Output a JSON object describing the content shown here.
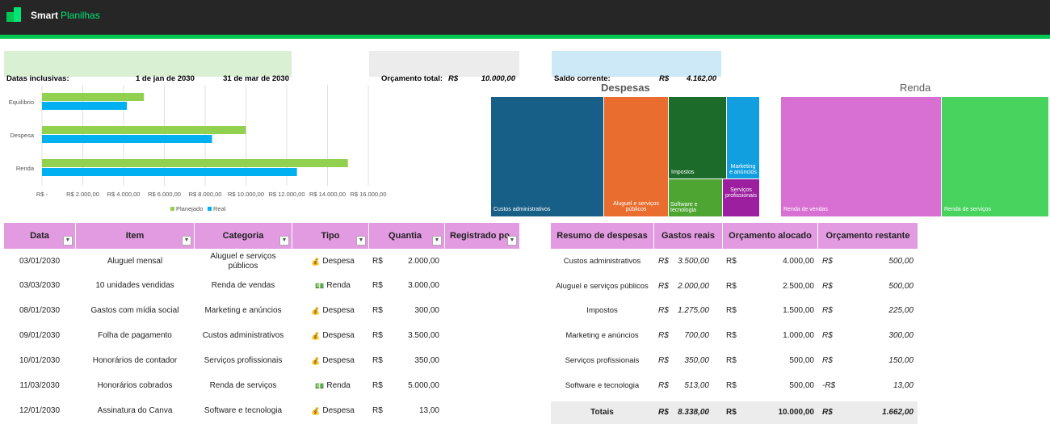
{
  "app": {
    "brand": "Smart",
    "brand_accent": "Planilhas"
  },
  "dates": {
    "label": "Datas inclusivas:",
    "start": "1 de jan de 2030",
    "end": "31 de mar de 2030"
  },
  "budget": {
    "label": "Orçamento total:",
    "currency": "R$",
    "value": "10.000,00"
  },
  "balance": {
    "label": "Saldo corrente:",
    "currency": "R$",
    "value": "4.162,00"
  },
  "chart_data": {
    "type": "bar",
    "orientation": "horizontal",
    "categories": [
      "Equilíbrio",
      "Despesa",
      "Renda"
    ],
    "series": [
      {
        "name": "Planejado",
        "values": [
          5000,
          10000,
          15000
        ],
        "color": "#92d050"
      },
      {
        "name": "Real",
        "values": [
          4162,
          8338,
          12500
        ],
        "color": "#00b0f0"
      }
    ],
    "xlim": [
      0,
      16000
    ],
    "ticks": [
      "R$ -",
      "R$ 2.000,00",
      "R$ 4.000,00",
      "R$ 6.000,00",
      "R$ 8.000,00",
      "R$ 10.000,00",
      "R$ 12.000,00",
      "R$ 14.000,00",
      "R$ 16.000,00"
    ],
    "grid": true,
    "legend": "bottom"
  },
  "treemap_expenses": {
    "title": "Despesas",
    "cells": [
      {
        "label": "Custos administrativos",
        "color": "#175f86"
      },
      {
        "label": "Aluguel e serviços públicos",
        "color": "#e96d2e"
      },
      {
        "label": "Impostos",
        "color": "#1d6b2b"
      },
      {
        "label": "Marketing e anúncios",
        "color": "#129fe0"
      },
      {
        "label": "Software e tecnologia",
        "color": "#4ea531"
      },
      {
        "label": "Serviços profissionais",
        "color": "#9b1f9e"
      }
    ]
  },
  "treemap_income": {
    "title": "Renda",
    "cells": [
      {
        "label": "Renda de vendas",
        "color": "#d86fd2"
      },
      {
        "label": "Renda de serviços",
        "color": "#48d35e"
      }
    ]
  },
  "transactions": {
    "headers": [
      "Data",
      "Item",
      "Categoria",
      "Tipo",
      "Quantia",
      "Registrado po"
    ],
    "rows": [
      {
        "date": "03/01/2030",
        "item": "Aluguel mensal",
        "category": "Aluguel e serviços públicos",
        "type_icon": "💰",
        "type": "Despesa",
        "cur": "R$",
        "amount": "2.000,00"
      },
      {
        "date": "03/03/2030",
        "item": "10 unidades vendidas",
        "category": "Renda de vendas",
        "type_icon": "💵",
        "type": "Renda",
        "cur": "R$",
        "amount": "3.000,00"
      },
      {
        "date": "08/01/2030",
        "item": "Gastos com mídia social",
        "category": "Marketing e anúncios",
        "type_icon": "💰",
        "type": "Despesa",
        "cur": "R$",
        "amount": "300,00"
      },
      {
        "date": "09/01/2030",
        "item": "Folha de pagamento",
        "category": "Custos administrativos",
        "type_icon": "💰",
        "type": "Despesa",
        "cur": "R$",
        "amount": "3.500,00"
      },
      {
        "date": "10/01/2030",
        "item": "Honorários de contador",
        "category": "Serviços profissionais",
        "type_icon": "💰",
        "type": "Despesa",
        "cur": "R$",
        "amount": "350,00"
      },
      {
        "date": "11/03/2030",
        "item": "Honorários cobrados",
        "category": "Renda de serviços",
        "type_icon": "💵",
        "type": "Renda",
        "cur": "R$",
        "amount": "5.000,00"
      },
      {
        "date": "12/01/2030",
        "item": "Assinatura do Canva",
        "category": "Software e tecnologia",
        "type_icon": "💰",
        "type": "Despesa",
        "cur": "R$",
        "amount": "13,00"
      }
    ]
  },
  "summary": {
    "headers": [
      "Resumo de despesas",
      "Gastos reais",
      "Orçamento alocado",
      "Orçamento restante"
    ],
    "rows": [
      {
        "name": "Custos administrativos",
        "c1": "R$",
        "actual": "3.500,00",
        "c2": "R$",
        "allocated": "4.000,00",
        "c3": "R$",
        "remaining": "500,00"
      },
      {
        "name": "Aluguel e serviços públicos",
        "c1": "R$",
        "actual": "2.000,00",
        "c2": "R$",
        "allocated": "2.500,00",
        "c3": "R$",
        "remaining": "500,00"
      },
      {
        "name": "Impostos",
        "c1": "R$",
        "actual": "1.275,00",
        "c2": "R$",
        "allocated": "1.500,00",
        "c3": "R$",
        "remaining": "225,00"
      },
      {
        "name": "Marketing e anúncios",
        "c1": "R$",
        "actual": "700,00",
        "c2": "R$",
        "allocated": "1.000,00",
        "c3": "R$",
        "remaining": "300,00"
      },
      {
        "name": "Serviços profissionais",
        "c1": "R$",
        "actual": "350,00",
        "c2": "R$",
        "allocated": "500,00",
        "c3": "R$",
        "remaining": "150,00"
      },
      {
        "name": "Software e tecnologia",
        "c1": "R$",
        "actual": "513,00",
        "c2": "R$",
        "allocated": "500,00",
        "c3": "-R$",
        "remaining": "13,00"
      }
    ],
    "totals": {
      "name": "Totais",
      "c1": "R$",
      "actual": "8.338,00",
      "c2": "R$",
      "allocated": "10.000,00",
      "c3": "R$",
      "remaining": "1.662,00"
    }
  }
}
